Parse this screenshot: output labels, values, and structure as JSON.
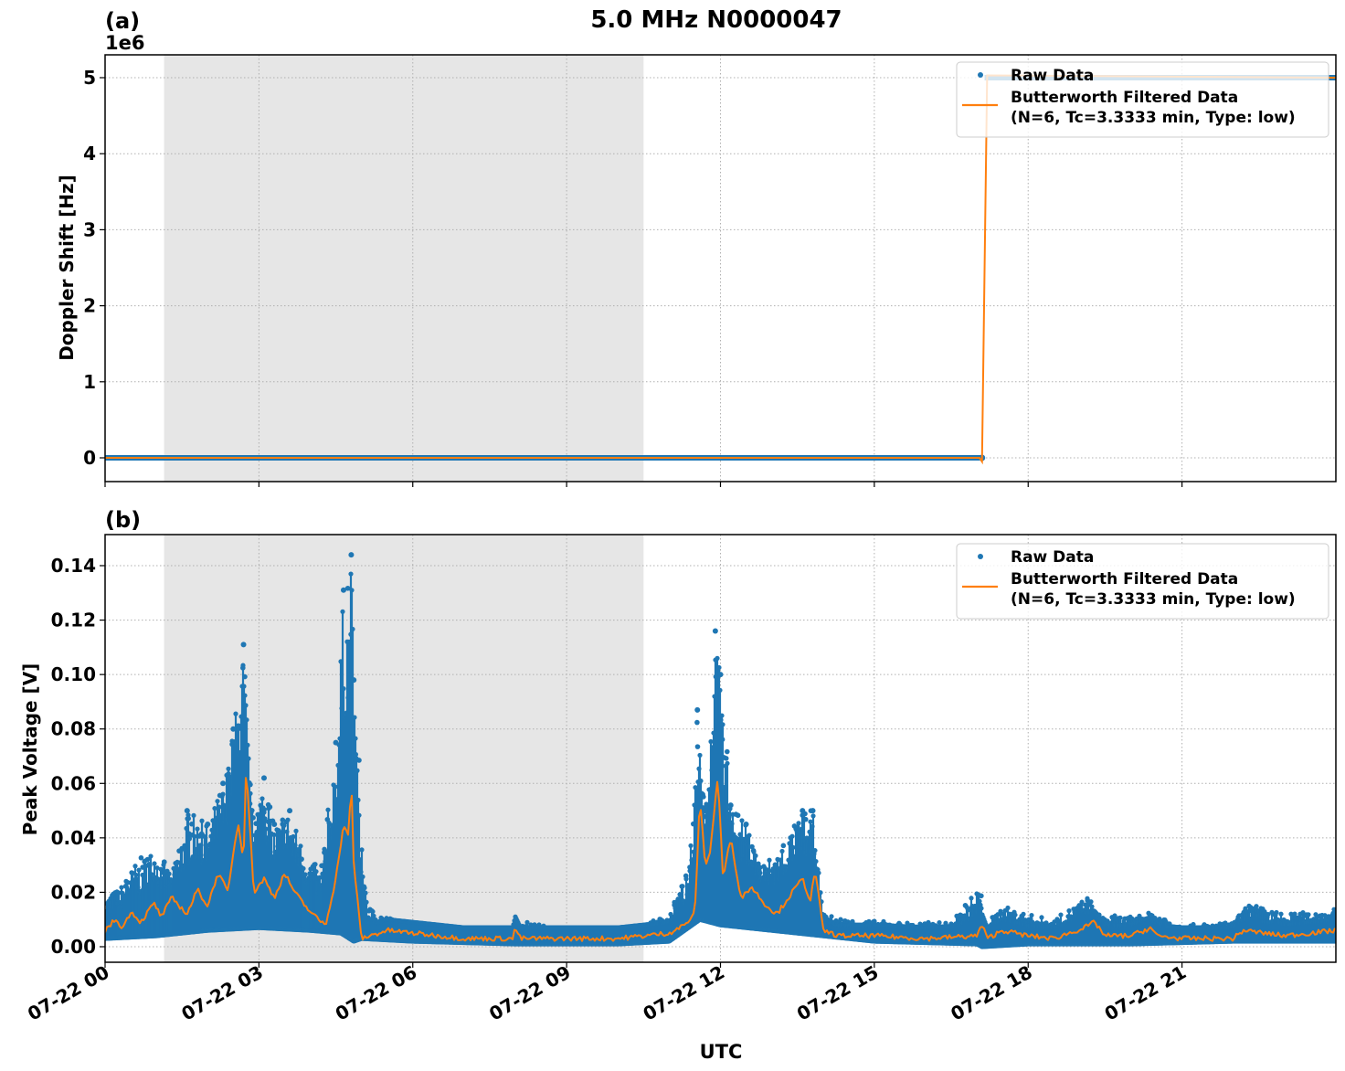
{
  "figure": {
    "title": "5.0 MHz N0000047",
    "xlabel": "UTC",
    "night_shade": {
      "start_hour": 1.15,
      "end_hour": 10.5,
      "color": "#e6e6e6"
    },
    "colors": {
      "raw": "#1f77b4",
      "filtered": "#ff7f0e",
      "grid": "#b0b0b0"
    }
  },
  "chart_data": [
    {
      "panel": "(a)",
      "type": "scatter",
      "title": "(a)",
      "offset_label": "1e6",
      "xlabel": "",
      "ylabel": "Doppler Shift [Hz]",
      "x_ticks": [
        "07-22 00",
        "07-22 03",
        "07-22 06",
        "07-22 09",
        "07-22 12",
        "07-22 15",
        "07-22 18",
        "07-22 21"
      ],
      "x_range_hours": [
        0,
        24
      ],
      "y_ticks": [
        "0",
        "1",
        "2",
        "3",
        "4",
        "5"
      ],
      "ylim": [
        -0.32,
        5.3
      ],
      "y_scale": 1000000,
      "grid": true,
      "legend": {
        "position": "upper right",
        "entries": [
          "Raw Data",
          "Butterworth Filtered Data\n(N=6, Tc=3.3333 min, Type: low)"
        ]
      },
      "series": [
        {
          "name": "Raw Data",
          "style": "points",
          "x_hours": [
            0,
            17.1,
            17.15,
            24
          ],
          "values": [
            0,
            0,
            5.0,
            5.0
          ]
        },
        {
          "name": "Butterworth Filtered Data (N=6, Tc=3.3333 min, Type: low)",
          "style": "line",
          "x_hours": [
            0,
            17.05,
            17.1,
            17.2,
            24
          ],
          "values": [
            0,
            0,
            -0.05,
            5.03,
            5.0
          ]
        }
      ]
    },
    {
      "panel": "(b)",
      "type": "scatter",
      "title": "(b)",
      "xlabel": "UTC",
      "ylabel": "Peak Voltage [V]",
      "x_ticks": [
        "07-22 00",
        "07-22 03",
        "07-22 06",
        "07-22 09",
        "07-22 12",
        "07-22 15",
        "07-22 18",
        "07-22 21"
      ],
      "x_range_hours": [
        0,
        24
      ],
      "y_ticks": [
        "0.00",
        "0.02",
        "0.04",
        "0.06",
        "0.08",
        "0.10",
        "0.12",
        "0.14"
      ],
      "ylim": [
        -0.006,
        0.151
      ],
      "grid": true,
      "legend": {
        "position": "upper right",
        "entries": [
          "Raw Data",
          "Butterworth Filtered Data\n(N=6, Tc=3.3333 min, Type: low)"
        ]
      },
      "series": [
        {
          "name": "Raw Data upper envelope",
          "x_hours": [
            0,
            0.3,
            0.6,
            1.0,
            1.3,
            1.6,
            2.0,
            2.3,
            2.5,
            2.7,
            2.85,
            3.1,
            3.3,
            3.6,
            3.9,
            4.2,
            4.5,
            4.65,
            4.8,
            4.85,
            5.1,
            5.5,
            6.0,
            7.0,
            8.0,
            8.05,
            9.0,
            10.0,
            10.5,
            11.0,
            11.4,
            11.55,
            11.7,
            11.9,
            12.0,
            12.2,
            12.5,
            12.8,
            13.3,
            13.6,
            13.8,
            13.9,
            14.0,
            14.5,
            15.5,
            16.5,
            17.05,
            17.15,
            17.5,
            18.0,
            18.5,
            19.2,
            19.3,
            20.0,
            20.5,
            21.0,
            22.0,
            22.3,
            23.0,
            24.0
          ],
          "values": [
            0.018,
            0.022,
            0.031,
            0.037,
            0.026,
            0.05,
            0.045,
            0.06,
            0.08,
            0.111,
            0.05,
            0.062,
            0.045,
            0.05,
            0.035,
            0.028,
            0.075,
            0.131,
            0.144,
            0.098,
            0.015,
            0.011,
            0.008,
            0.006,
            0.006,
            0.01,
            0.006,
            0.007,
            0.008,
            0.012,
            0.03,
            0.087,
            0.05,
            0.116,
            0.1,
            0.052,
            0.045,
            0.03,
            0.04,
            0.05,
            0.05,
            0.03,
            0.012,
            0.01,
            0.009,
            0.009,
            0.022,
            0.008,
            0.015,
            0.012,
            0.01,
            0.019,
            0.012,
            0.011,
            0.013,
            0.008,
            0.009,
            0.016,
            0.012,
            0.014
          ]
        },
        {
          "name": "Raw Data lower envelope",
          "x_hours": [
            0,
            1.0,
            2.0,
            3.0,
            4.0,
            4.6,
            4.85,
            5.0,
            6.0,
            8.0,
            10.0,
            11.0,
            11.6,
            12.0,
            13.0,
            14.0,
            15.0,
            17.0,
            17.1,
            18.0,
            20.0,
            22.0,
            24.0
          ],
          "values": [
            0.003,
            0.004,
            0.006,
            0.007,
            0.006,
            0.005,
            0.002,
            0.003,
            0.002,
            0.001,
            0.001,
            0.002,
            0.01,
            0.008,
            0.006,
            0.004,
            0.002,
            0.001,
            0.0,
            0.001,
            0.001,
            0.002,
            0.002
          ]
        },
        {
          "name": "Butterworth Filtered Data (N=6, Tc=3.3333 min, Type: low)",
          "x_hours": [
            0,
            0.2,
            0.35,
            0.5,
            0.7,
            0.95,
            1.1,
            1.3,
            1.6,
            1.8,
            2.0,
            2.2,
            2.4,
            2.5,
            2.6,
            2.7,
            2.75,
            2.9,
            3.1,
            3.3,
            3.5,
            3.7,
            3.9,
            4.1,
            4.3,
            4.5,
            4.65,
            4.75,
            4.8,
            4.85,
            5.0,
            5.5,
            6.0,
            7.0,
            7.95,
            8.0,
            8.1,
            9.0,
            10.0,
            10.5,
            11.0,
            11.3,
            11.5,
            11.6,
            11.7,
            11.8,
            11.95,
            12.05,
            12.2,
            12.4,
            12.6,
            12.9,
            13.1,
            13.4,
            13.6,
            13.75,
            13.85,
            14.0,
            14.3,
            15.0,
            16.0,
            17.0,
            17.1,
            17.2,
            17.5,
            18.0,
            18.5,
            19.1,
            19.3,
            19.5,
            20.0,
            20.4,
            20.5,
            21.0,
            22.0,
            22.2,
            23.0,
            23.5,
            24.0
          ],
          "values": [
            0.006,
            0.01,
            0.007,
            0.013,
            0.009,
            0.016,
            0.011,
            0.018,
            0.012,
            0.021,
            0.015,
            0.027,
            0.02,
            0.035,
            0.045,
            0.032,
            0.067,
            0.02,
            0.025,
            0.018,
            0.027,
            0.02,
            0.015,
            0.011,
            0.008,
            0.025,
            0.045,
            0.04,
            0.062,
            0.03,
            0.003,
            0.006,
            0.005,
            0.003,
            0.003,
            0.007,
            0.003,
            0.003,
            0.003,
            0.004,
            0.005,
            0.008,
            0.012,
            0.055,
            0.03,
            0.035,
            0.063,
            0.025,
            0.04,
            0.018,
            0.022,
            0.015,
            0.012,
            0.02,
            0.025,
            0.017,
            0.028,
            0.006,
            0.004,
            0.004,
            0.003,
            0.004,
            0.008,
            0.003,
            0.006,
            0.004,
            0.003,
            0.007,
            0.009,
            0.004,
            0.004,
            0.007,
            0.004,
            0.003,
            0.003,
            0.006,
            0.004,
            0.005,
            0.006
          ]
        }
      ]
    }
  ]
}
